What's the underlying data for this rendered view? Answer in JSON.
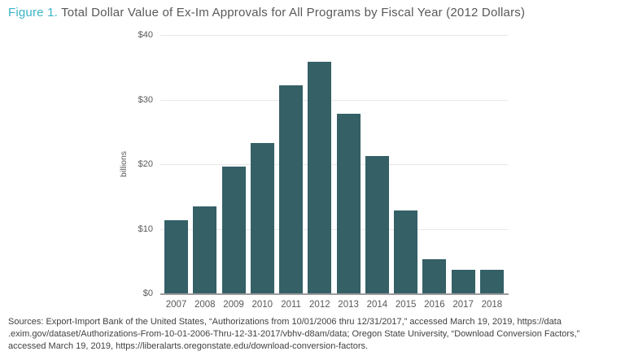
{
  "title": {
    "prefix": "Figure 1.",
    "text": " Total Dollar Value of Ex-Im Approvals for All Programs by Fiscal Year (2012 Dollars)"
  },
  "colors": {
    "title_accent": "#3BB4C6",
    "title_text": "#58595B",
    "bar": "#346066",
    "gridline": "#E9E9EA",
    "axis_line": "#9B9B9E",
    "source_text": "#414143"
  },
  "chart_data": {
    "type": "bar",
    "title": "Total Dollar Value of Ex-Im Approvals for All Programs by Fiscal Year (2012 Dollars)",
    "categories": [
      "2007",
      "2008",
      "2009",
      "2010",
      "2011",
      "2012",
      "2013",
      "2014",
      "2015",
      "2016",
      "2017",
      "2018"
    ],
    "values": [
      11.3,
      13.5,
      19.6,
      23.3,
      32.2,
      35.9,
      27.8,
      21.2,
      12.8,
      5.3,
      3.7,
      3.7
    ],
    "xlabel": "",
    "ylabel": "billions",
    "ylim": [
      0,
      40
    ],
    "yticks": [
      {
        "value": 0,
        "label": "$0"
      },
      {
        "value": 10,
        "label": "$10"
      },
      {
        "value": 20,
        "label": "$20"
      },
      {
        "value": 30,
        "label": "$30"
      },
      {
        "value": 40,
        "label": "$40"
      }
    ],
    "grid": true,
    "legend": "none",
    "bar_color": "#346066"
  },
  "sources": {
    "lines": [
      "Sources: Export-Import Bank of the United States, “Authorizations from 10/01/2006 thru 12/31/2017,” accessed March 19, 2019, https://data",
      ".exim.gov/dataset/Authorizations-From-10-01-2006-Thru-12-31-2017/vbhv-d8am/data; Oregon State University, “Download Conversion Factors,”",
      "accessed March 19, 2019, https://liberalarts.oregonstate.edu/download-conversion-factors."
    ]
  }
}
